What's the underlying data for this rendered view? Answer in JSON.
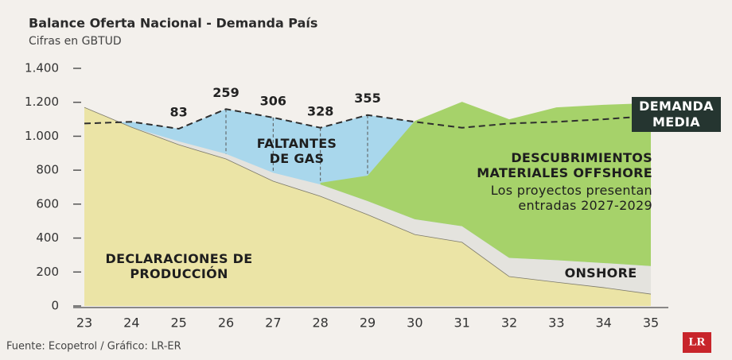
{
  "chart_data": {
    "type": "area",
    "title": "Balance Oferta Nacional - Demanda País",
    "subtitle": "Cifras en GBTUD",
    "source": "Fuente: Ecopetrol / Gráfico: LR-ER",
    "logo": "LR",
    "categories": [
      "23",
      "24",
      "25",
      "26",
      "27",
      "28",
      "29",
      "30",
      "31",
      "32",
      "33",
      "34",
      "35"
    ],
    "ylim": [
      0,
      1400
    ],
    "yticks": [
      0,
      200,
      400,
      600,
      800,
      {
        "value": 1000,
        "label": "1.000"
      },
      {
        "value": 1200,
        "label": "1.200"
      },
      {
        "value": 1400,
        "label": "1.400"
      }
    ],
    "series": [
      {
        "name": "DECLARACIONES DE PRODUCCIÓN",
        "color": "#ebe4a6",
        "values": [
          1170,
          1053,
          950,
          866,
          735,
          646,
          538,
          421,
          375,
          173,
          140,
          108,
          70
        ]
      },
      {
        "name": "ONSHORE",
        "color": "#e4e3de",
        "values": [
          0,
          0,
          20,
          30,
          50,
          70,
          80,
          90,
          95,
          110,
          130,
          145,
          165
        ]
      },
      {
        "name": "DESCUBRIMIENTOS MATERIALES OFFSHORE",
        "note": "Los proyectos presentan entradas 2027-2029",
        "color": "#a6d26a",
        "values": [
          null,
          null,
          null,
          null,
          null,
          10,
          150,
          579,
          733,
          817,
          900,
          932,
          960
        ]
      }
    ],
    "demand": {
      "name": "DEMANDA MEDIA",
      "color": "#2e2e2e",
      "values": [
        1075,
        1085,
        1044,
        1160,
        1110,
        1050,
        1125,
        1085,
        1050,
        1075,
        1085,
        1100,
        1120
      ]
    },
    "shortfall": {
      "name": "FALTANTES DE GAS",
      "color": "#a9d7ec",
      "values": [
        null,
        null,
        83,
        259,
        306,
        328,
        355,
        null,
        null,
        null,
        null,
        null,
        null
      ]
    }
  }
}
